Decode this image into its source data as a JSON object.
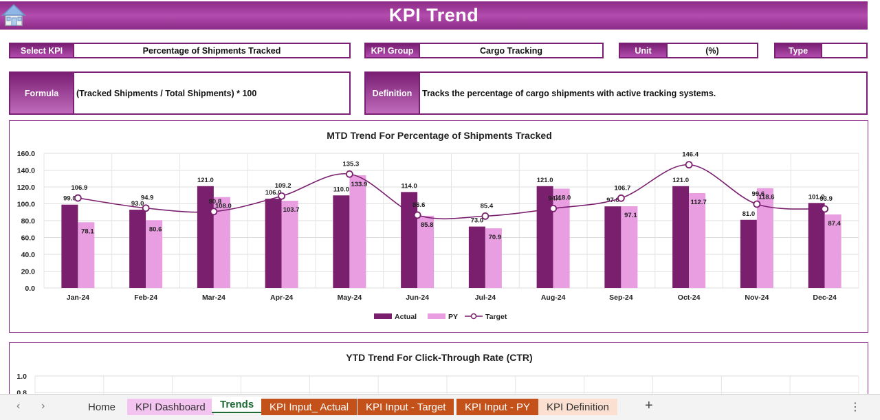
{
  "header": {
    "title": "KPI Trend",
    "home_icon": "home-icon"
  },
  "fields": {
    "select_kpi": {
      "label": "Select KPI",
      "value": "Percentage of Shipments Tracked"
    },
    "kpi_group": {
      "label": "KPI Group",
      "value": "Cargo Tracking"
    },
    "unit": {
      "label": "Unit",
      "value": "(%)"
    },
    "type": {
      "label": "Type",
      "value": ""
    },
    "formula": {
      "label": "Formula",
      "value": "(Tracked Shipments / Total Shipments) * 100"
    },
    "definition": {
      "label": "Definition",
      "value": "Tracks the percentage of cargo shipments with active tracking systems."
    }
  },
  "chart_data": [
    {
      "type": "bar",
      "title": "MTD Trend For Percentage of Shipments Tracked",
      "categories": [
        "Jan-24",
        "Feb-24",
        "Mar-24",
        "Apr-24",
        "May-24",
        "Jun-24",
        "Jul-24",
        "Aug-24",
        "Sep-24",
        "Oct-24",
        "Nov-24",
        "Dec-24"
      ],
      "series": [
        {
          "name": "Actual",
          "kind": "bar",
          "color": "#7a1f6e",
          "values": [
            99.0,
            93.0,
            121.0,
            106.0,
            110.0,
            114.0,
            73.0,
            121.0,
            97.0,
            121.0,
            81.0,
            101.0
          ]
        },
        {
          "name": "PY",
          "kind": "bar",
          "color": "#e89ee0",
          "values": [
            78.1,
            80.6,
            108.0,
            103.7,
            133.9,
            85.8,
            70.9,
            118.0,
            97.1,
            112.7,
            118.6,
            87.4
          ]
        },
        {
          "name": "Target",
          "kind": "line",
          "color": "#7a1f6e",
          "values": [
            106.9,
            94.9,
            90.8,
            109.2,
            135.3,
            86.6,
            85.4,
            94.4,
            106.7,
            146.4,
            99.6,
            93.9
          ]
        }
      ],
      "ylim": [
        0,
        160
      ],
      "yticks": [
        "0.0",
        "20.0",
        "40.0",
        "60.0",
        "80.0",
        "100.0",
        "120.0",
        "140.0",
        "160.0"
      ],
      "legend": "bottom",
      "grid": true
    },
    {
      "type": "bar",
      "title": "YTD Trend For Click-Through Rate (CTR)",
      "visible_yticks": [
        "1.0",
        "0.8"
      ],
      "grid": true
    }
  ],
  "tabs": {
    "items": [
      {
        "label": "Home",
        "bg": "transparent",
        "color": "#333333"
      },
      {
        "label": "KPI Dashboard",
        "bg": "#f3c4ef",
        "color": "#333333"
      },
      {
        "label": "Trends",
        "bg": "#ffffff",
        "color": "#1e6b34"
      },
      {
        "label": "KPI Input_ Actual",
        "bg": "#c4511a",
        "color": "#ffffff"
      },
      {
        "label": "KPI Input - Target",
        "bg": "#c4511a",
        "color": "#ffffff"
      },
      {
        "label": "KPI Input - PY",
        "bg": "#c4511a",
        "color": "#ffffff"
      },
      {
        "label": "KPI Definition",
        "bg": "#fbe0d2",
        "color": "#333333"
      }
    ],
    "add_label": "+",
    "more_label": "⋮"
  }
}
